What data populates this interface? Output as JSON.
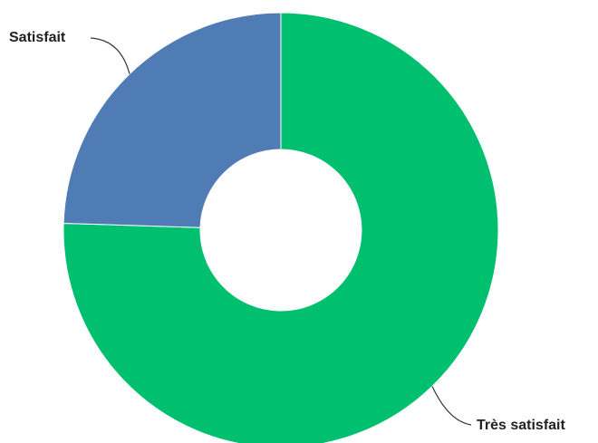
{
  "chart_data": {
    "type": "pie",
    "donut": true,
    "title": "",
    "slices": [
      {
        "label": "Très satisfait",
        "value": 75.5,
        "color": "#00bf6f"
      },
      {
        "label": "Satisfait",
        "value": 24.5,
        "color": "#507cb6"
      }
    ],
    "start_angle_deg": 0,
    "legend": "none"
  }
}
